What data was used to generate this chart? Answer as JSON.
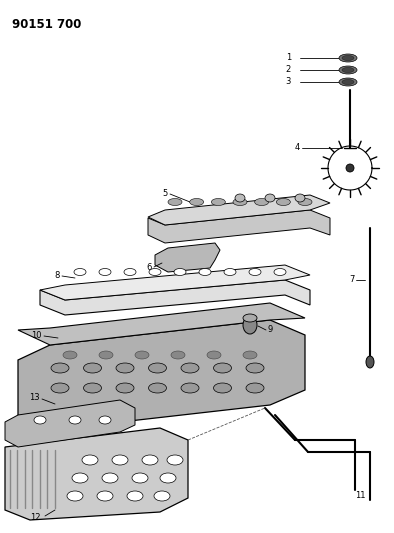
{
  "title": "90151 700",
  "bg_color": "#ffffff",
  "lc": "#000000",
  "fig_width": 3.94,
  "fig_height": 5.33,
  "dpi": 100
}
